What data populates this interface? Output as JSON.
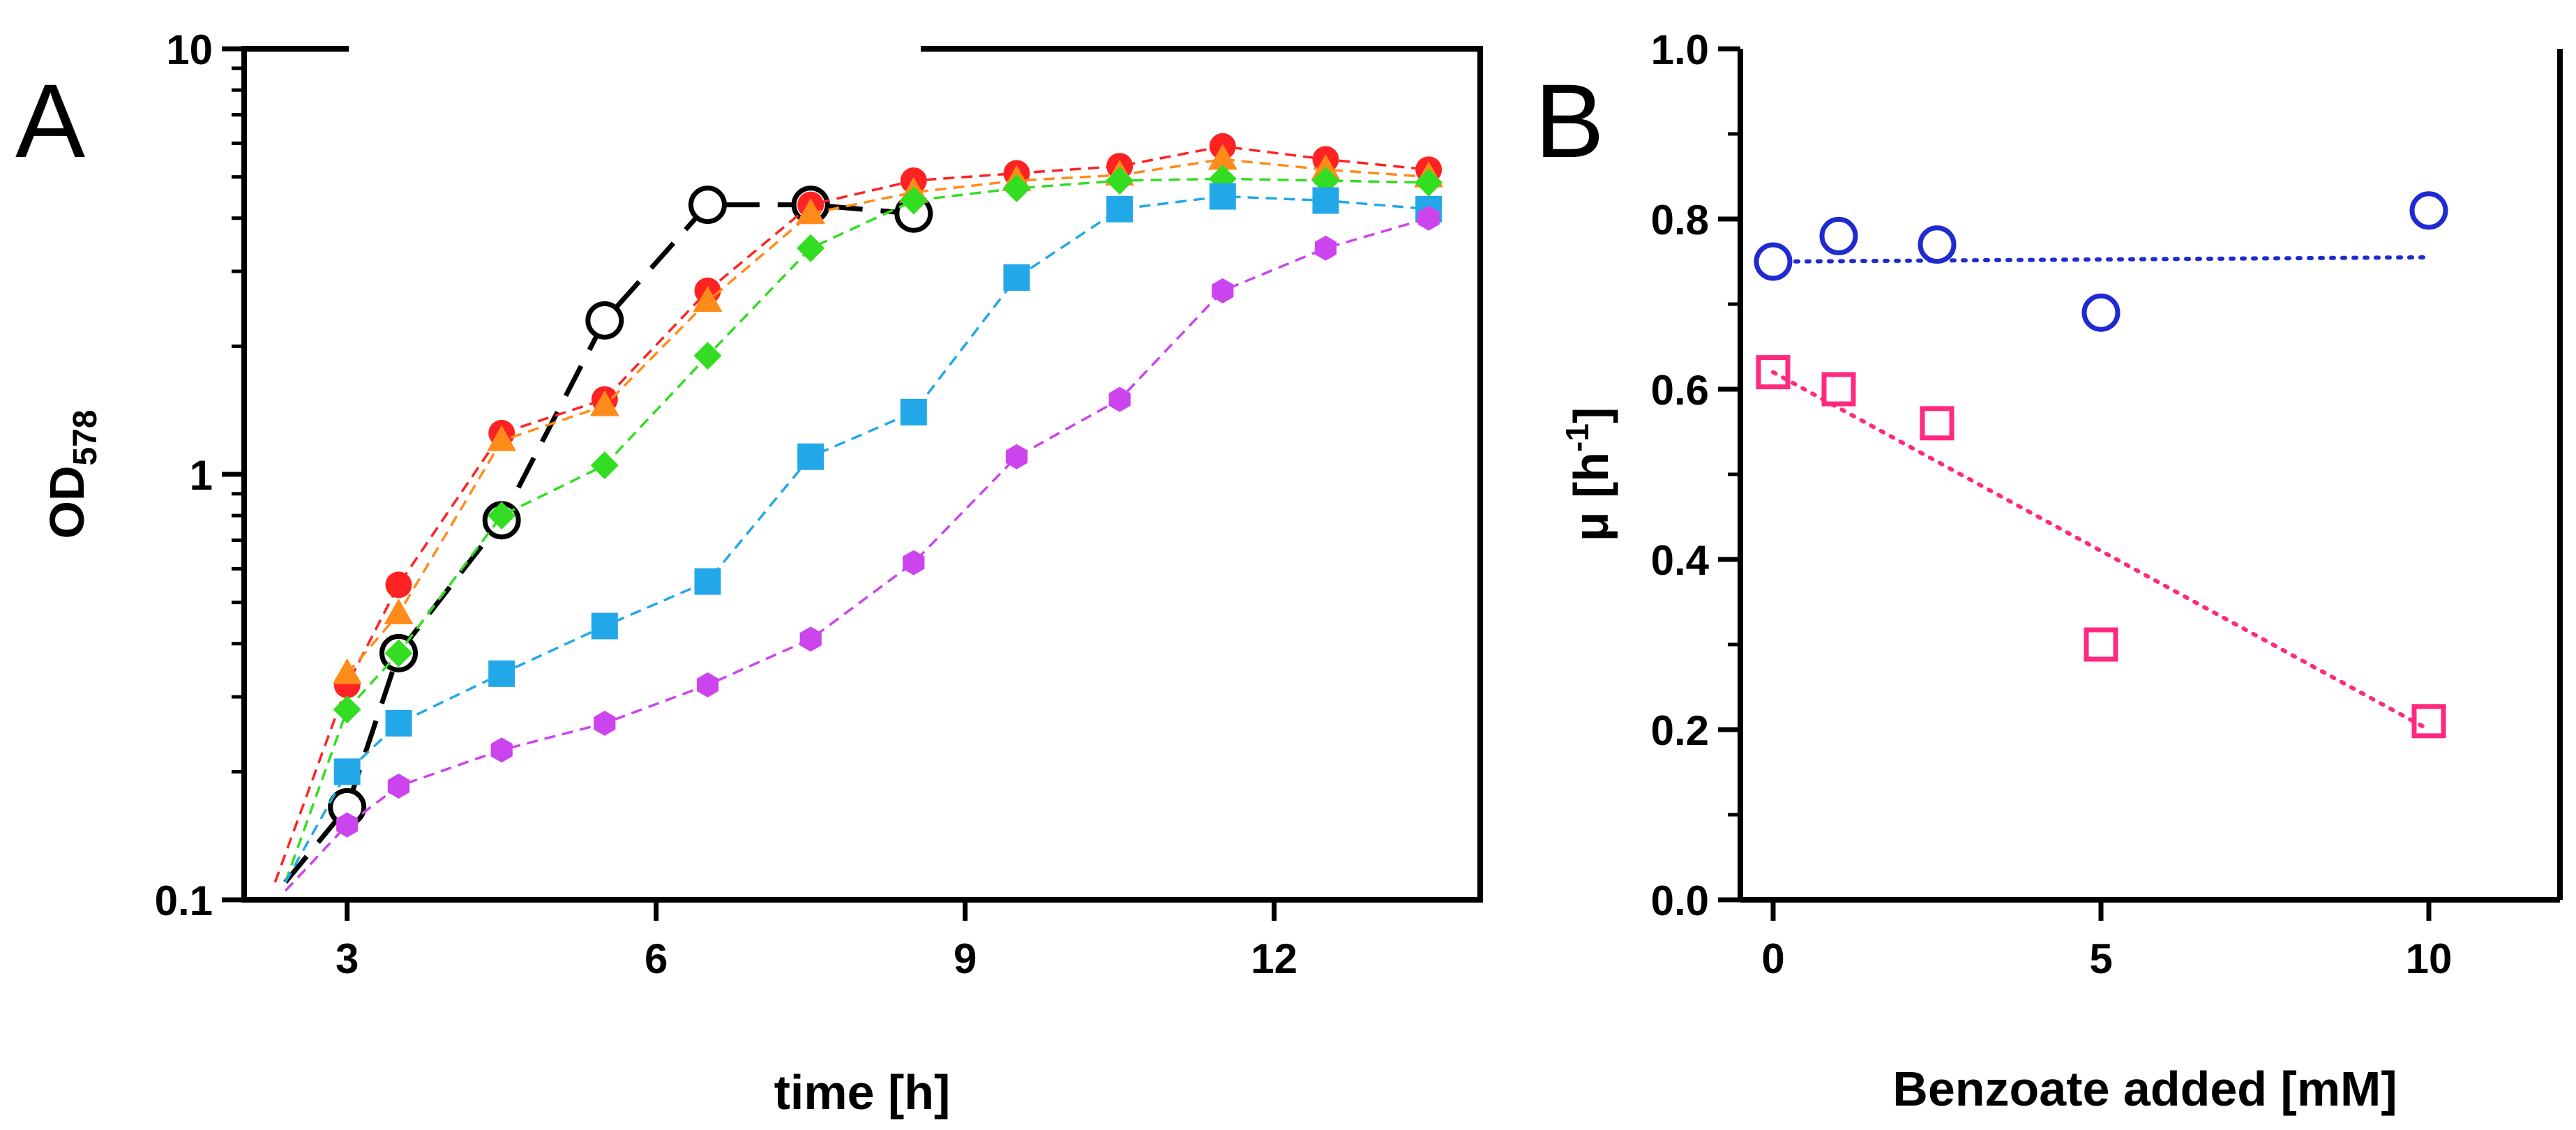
{
  "chart_data": [
    {
      "type": "line",
      "panel_label": "A",
      "xlabel": "time [h]",
      "ylabel": "OD",
      "ylabel_sub": "578",
      "yscale": "log",
      "xlim": [
        2,
        14
      ],
      "ylim": [
        0.1,
        10
      ],
      "xticks": [
        3,
        6,
        9,
        12
      ],
      "xtick_labels": [
        "3",
        "6",
        "9",
        "12"
      ],
      "yticks": [
        0.1,
        1,
        10
      ],
      "ytick_labels": [
        "0.1",
        "1",
        "10"
      ],
      "grid": false,
      "legend": "none",
      "series": [
        {
          "color": "#000000",
          "marker": "open-circle",
          "line": "long-dash",
          "x": [
            2.4,
            3,
            3.5,
            4.5,
            5.5,
            6.5,
            7.5,
            8.5
          ],
          "y": [
            0.11,
            0.165,
            0.38,
            0.78,
            2.3,
            4.3,
            4.3,
            4.1
          ]
        },
        {
          "color": "#ff2222",
          "marker": "filled-circle",
          "line": "dash",
          "x": [
            2.3,
            3,
            3.5,
            4.5,
            5.5,
            6.5,
            7.5,
            8.5,
            9.5,
            10.5,
            11.5,
            12.5,
            13.5
          ],
          "y": [
            0.11,
            0.32,
            0.55,
            1.25,
            1.5,
            2.7,
            4.3,
            4.9,
            5.1,
            5.3,
            5.9,
            5.5,
            5.2
          ]
        },
        {
          "color": "#ff8c1a",
          "marker": "filled-triangle",
          "line": "dash",
          "x": [
            3,
            3.5,
            4.5,
            5.5,
            6.5,
            7.5,
            8.5,
            9.5,
            10.5,
            11.5,
            12.5,
            13.5
          ],
          "y": [
            0.34,
            0.47,
            1.2,
            1.45,
            2.55,
            4.1,
            4.6,
            4.9,
            5.05,
            5.5,
            5.2,
            5.0
          ]
        },
        {
          "color": "#33dd22",
          "marker": "filled-diamond",
          "line": "dash",
          "x": [
            2.4,
            3,
            3.5,
            4.5,
            5.5,
            6.5,
            7.5,
            8.5,
            9.5,
            10.5,
            11.5,
            12.5,
            13.5
          ],
          "y": [
            0.11,
            0.28,
            0.38,
            0.8,
            1.05,
            1.9,
            3.4,
            4.4,
            4.7,
            4.9,
            4.95,
            4.9,
            4.85
          ]
        },
        {
          "color": "#22a8e8",
          "marker": "filled-square",
          "line": "dash",
          "x": [
            2.4,
            3,
            3.5,
            4.5,
            5.5,
            6.5,
            7.5,
            8.5,
            9.5,
            10.5,
            11.5,
            12.5,
            13.5
          ],
          "y": [
            0.11,
            0.2,
            0.26,
            0.34,
            0.44,
            0.56,
            1.1,
            1.4,
            2.9,
            4.2,
            4.5,
            4.4,
            4.2
          ]
        },
        {
          "color": "#cc44ee",
          "marker": "filled-hexagon",
          "line": "dash",
          "x": [
            2.4,
            3,
            3.5,
            4.5,
            5.5,
            6.5,
            7.5,
            8.5,
            9.5,
            10.5,
            11.5,
            12.5,
            13.5
          ],
          "y": [
            0.105,
            0.15,
            0.185,
            0.225,
            0.26,
            0.32,
            0.41,
            0.62,
            1.1,
            1.5,
            2.7,
            3.4,
            4.0
          ]
        }
      ]
    },
    {
      "type": "scatter",
      "panel_label": "B",
      "xlabel": "Benzoate added [mM]",
      "ylabel": "μ [h",
      "ylabel_sup": "-1",
      "ylabel_end": "]",
      "xlim": [
        -0.5,
        12
      ],
      "ylim": [
        0,
        1.0
      ],
      "xticks": [
        0,
        5,
        10
      ],
      "xtick_labels": [
        "0",
        "5",
        "10"
      ],
      "yticks": [
        0,
        0.2,
        0.4,
        0.6,
        0.8,
        1.0
      ],
      "ytick_labels": [
        "0.0",
        "0.2",
        "0.4",
        "0.6",
        "0.8",
        "1.0"
      ],
      "grid": false,
      "legend": "none",
      "series": [
        {
          "color": "#1f2bd0",
          "marker": "open-circle",
          "x": [
            0,
            1,
            2.5,
            5,
            10
          ],
          "y": [
            0.75,
            0.78,
            0.77,
            0.69,
            0.81
          ],
          "fit": {
            "x": [
              0,
              10
            ],
            "y": [
              0.75,
              0.755
            ]
          }
        },
        {
          "color": "#ff2a7f",
          "marker": "open-square",
          "x": [
            0,
            1,
            2.5,
            5,
            10
          ],
          "y": [
            0.62,
            0.6,
            0.56,
            0.3,
            0.21
          ],
          "fit": {
            "x": [
              0,
              10
            ],
            "y": [
              0.62,
              0.2
            ]
          }
        }
      ]
    }
  ]
}
